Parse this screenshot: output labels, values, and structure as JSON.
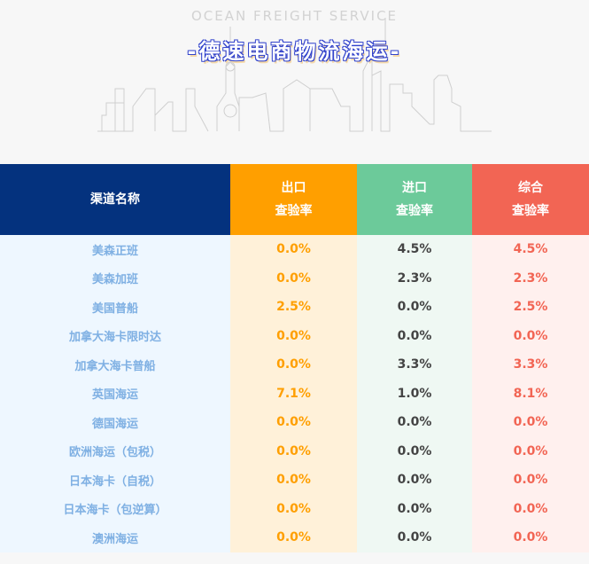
{
  "header": {
    "subtitle": "OCEAN FREIGHT SERVICE",
    "title": "-德速电商物流海运-"
  },
  "colors": {
    "name_col": "#04327e",
    "export": "#ff9f00",
    "import": "#6cca9a",
    "total": "#f26554"
  },
  "table": {
    "headers": [
      {
        "line1": "渠道名称",
        "line2": ""
      },
      {
        "line1": "出口",
        "line2": "查验率"
      },
      {
        "line1": "进口",
        "line2": "查验率"
      },
      {
        "line1": "综合",
        "line2": "查验率"
      }
    ],
    "rows": [
      [
        "美森正班",
        "0.0%",
        "4.5%",
        "4.5%"
      ],
      [
        "美森加班",
        "0.0%",
        "2.3%",
        "2.3%"
      ],
      [
        "美国普船",
        "2.5%",
        "0.0%",
        "2.5%"
      ],
      [
        "加拿大海卡限时达",
        "0.0%",
        "0.0%",
        "0.0%"
      ],
      [
        "加拿大海卡普船",
        "0.0%",
        "3.3%",
        "3.3%"
      ],
      [
        "英国海运",
        "7.1%",
        "1.0%",
        "8.1%"
      ],
      [
        "德国海运",
        "0.0%",
        "0.0%",
        "0.0%"
      ],
      [
        "欧洲海运（包税）",
        "0.0%",
        "0.0%",
        "0.0%"
      ],
      [
        "日本海卡（自税）",
        "0.0%",
        "0.0%",
        "0.0%"
      ],
      [
        "日本海卡（包逆算）",
        "0.0%",
        "0.0%",
        "0.0%"
      ],
      [
        "澳洲海运",
        "0.0%",
        "0.0%",
        "0.0%"
      ]
    ]
  }
}
